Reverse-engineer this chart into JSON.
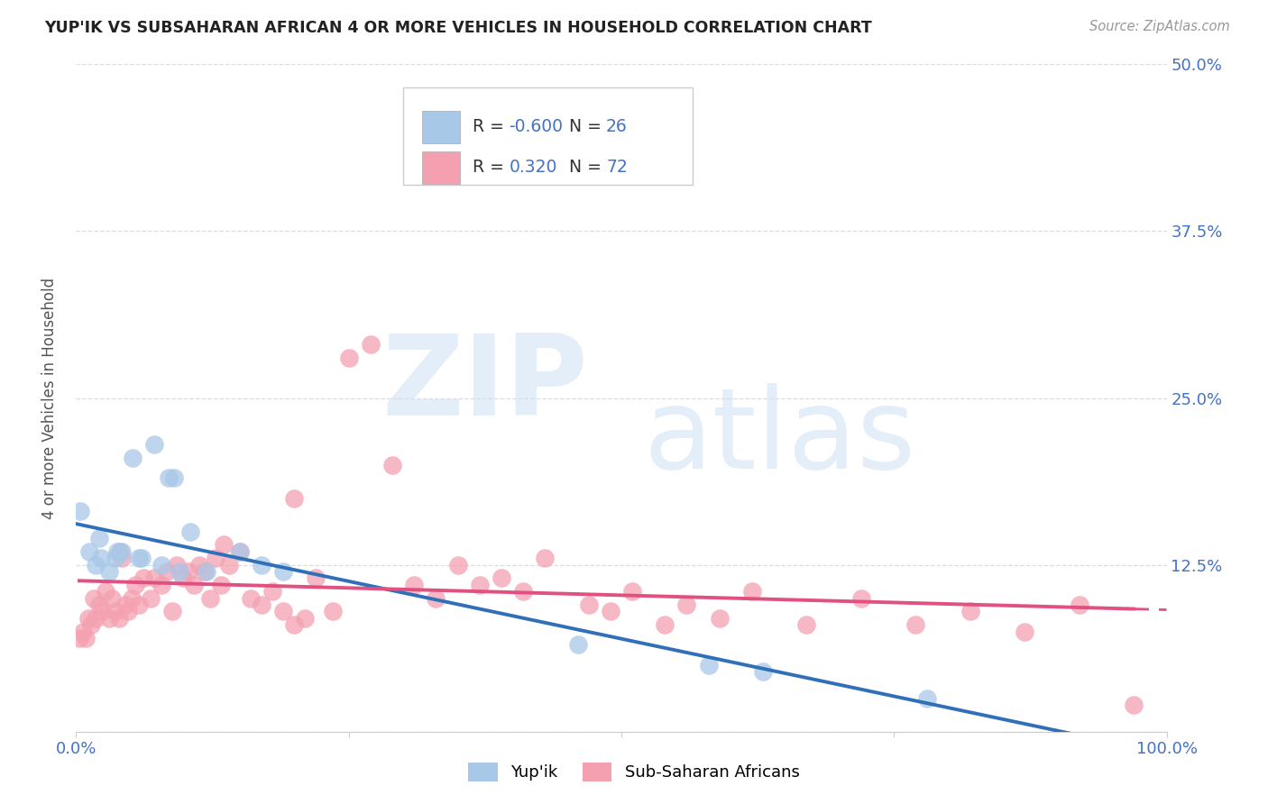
{
  "title": "YUP'IK VS SUBSAHARAN AFRICAN 4 OR MORE VEHICLES IN HOUSEHOLD CORRELATION CHART",
  "source": "Source: ZipAtlas.com",
  "ylabel_label": "4 or more Vehicles in Household",
  "r_blue": -0.6,
  "n_blue": 26,
  "r_pink": 0.32,
  "n_pink": 72,
  "blue_color": "#a8c8e8",
  "pink_color": "#f4a0b0",
  "blue_line_color": "#3070b8",
  "pink_line_color": "#e05080",
  "blue_scatter_x": [
    0.4,
    1.2,
    1.8,
    2.1,
    2.3,
    3.0,
    3.6,
    4.2,
    5.2,
    6.0,
    7.2,
    8.5,
    9.0,
    10.5,
    12.0,
    15.0,
    17.0,
    19.0,
    46.0,
    58.0,
    63.0,
    78.0,
    3.8,
    5.8,
    7.8,
    9.5
  ],
  "blue_scatter_y": [
    16.5,
    13.5,
    12.5,
    14.5,
    13.0,
    12.0,
    13.0,
    13.5,
    20.5,
    13.0,
    21.5,
    19.0,
    19.0,
    15.0,
    12.0,
    13.5,
    12.5,
    12.0,
    6.5,
    5.0,
    4.5,
    2.5,
    13.5,
    13.0,
    12.5,
    12.0
  ],
  "pink_scatter_x": [
    0.3,
    0.6,
    0.9,
    1.1,
    1.4,
    1.6,
    1.8,
    2.1,
    2.4,
    2.7,
    3.0,
    3.3,
    3.6,
    3.9,
    4.2,
    4.5,
    4.8,
    5.1,
    5.4,
    5.8,
    6.2,
    6.8,
    7.2,
    7.8,
    8.3,
    8.8,
    9.2,
    9.8,
    10.3,
    10.8,
    11.3,
    11.8,
    12.3,
    12.8,
    13.3,
    14.0,
    15.0,
    16.0,
    17.0,
    18.0,
    19.0,
    20.0,
    21.0,
    22.0,
    23.5,
    25.0,
    27.0,
    29.0,
    31.0,
    33.0,
    35.0,
    37.0,
    39.0,
    41.0,
    43.0,
    47.0,
    49.0,
    51.0,
    54.0,
    56.0,
    59.0,
    62.0,
    67.0,
    72.0,
    77.0,
    82.0,
    87.0,
    92.0,
    97.0,
    4.0,
    13.5,
    20.0
  ],
  "pink_scatter_y": [
    7.0,
    7.5,
    7.0,
    8.5,
    8.0,
    10.0,
    8.5,
    9.5,
    9.0,
    10.5,
    8.5,
    10.0,
    9.0,
    8.5,
    13.0,
    9.5,
    9.0,
    10.0,
    11.0,
    9.5,
    11.5,
    10.0,
    11.5,
    11.0,
    12.0,
    9.0,
    12.5,
    11.5,
    12.0,
    11.0,
    12.5,
    12.0,
    10.0,
    13.0,
    11.0,
    12.5,
    13.5,
    10.0,
    9.5,
    10.5,
    9.0,
    8.0,
    8.5,
    11.5,
    9.0,
    28.0,
    29.0,
    20.0,
    11.0,
    10.0,
    12.5,
    11.0,
    11.5,
    10.5,
    13.0,
    9.5,
    9.0,
    10.5,
    8.0,
    9.5,
    8.5,
    10.5,
    8.0,
    10.0,
    8.0,
    9.0,
    7.5,
    9.5,
    2.0,
    13.5,
    14.0,
    17.5
  ],
  "xlim": [
    0,
    100
  ],
  "ylim": [
    0,
    50
  ],
  "yticks": [
    0,
    12.5,
    25.0,
    37.5,
    50.0
  ],
  "ytick_labels": [
    "",
    "12.5%",
    "25.0%",
    "37.5%",
    "50.0%"
  ],
  "xtick_labels_show": [
    "0.0%",
    "100.0%"
  ],
  "tick_color": "#4472c4",
  "grid_color": "#dddddd",
  "title_color": "#222222",
  "source_color": "#999999",
  "ylabel_color": "#555555"
}
